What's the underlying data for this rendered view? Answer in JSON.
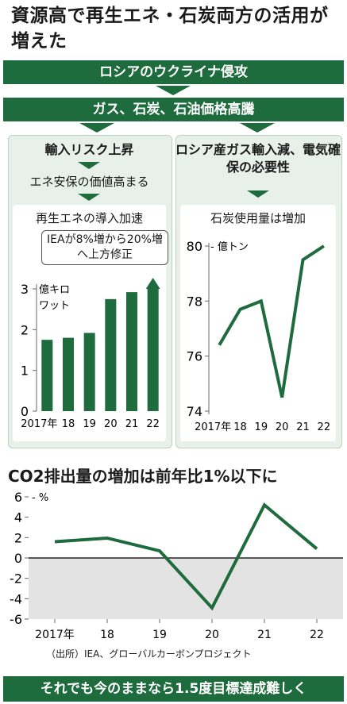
{
  "title": "資源高で再生エネ・石炭両方の活用が増えた",
  "flow": {
    "step1": "ロシアのウクライナ侵攻",
    "step2": "ガス、石炭、石油価格高騰"
  },
  "left_panel": {
    "heading": "輸入リスク上昇",
    "subheading": "エネ安保の価値高まる",
    "chart_title": "再生エネの導入加速",
    "callout": "IEAが8%増から20%増へ上方修正"
  },
  "right_panel": {
    "heading": "ロシア産ガス輸入減、電気確保の必要性",
    "chart_title": "石炭使用量は増加"
  },
  "co2_title": "CO2排出量の増加は前年比1%以下に",
  "source": "（出所）IEA、グローバルカーボンプロジェクト",
  "footer": "それでも今のままなら1.5度目標達成難しく",
  "colors": {
    "accent": "#1e6b3d",
    "panel_bg": "#e7f1e9",
    "negative_zone": "#e3e3e3"
  },
  "chart_data": [
    {
      "type": "bar",
      "title": "再生エネの導入加速",
      "unit": "億キロワット",
      "categories": [
        "2017年",
        "18",
        "19",
        "20",
        "21",
        "22"
      ],
      "values": [
        1.75,
        1.8,
        1.92,
        2.75,
        2.92,
        3.0
      ],
      "ylim": [
        0,
        3
      ],
      "yticks": [
        0,
        1,
        2,
        3
      ],
      "grid": false
    },
    {
      "type": "line",
      "title": "石炭使用量は増加",
      "unit": "億トン",
      "categories": [
        "2017年",
        "18",
        "19",
        "20",
        "21",
        "22"
      ],
      "values": [
        76.4,
        77.7,
        78.0,
        74.5,
        79.5,
        80.0
      ],
      "ylim": [
        74,
        80
      ],
      "yticks": [
        74,
        76,
        78,
        80
      ],
      "grid": false
    },
    {
      "type": "line",
      "title": "CO2排出量の増加は前年比1%以下に",
      "unit": "%",
      "categories": [
        "2017年",
        "18",
        "19",
        "20",
        "21",
        "22"
      ],
      "values": [
        1.6,
        1.95,
        0.7,
        -4.9,
        5.2,
        0.9
      ],
      "ylim": [
        -6,
        6
      ],
      "yticks": [
        -6,
        -4,
        -2,
        0,
        2,
        4,
        6
      ],
      "grid": false
    }
  ]
}
